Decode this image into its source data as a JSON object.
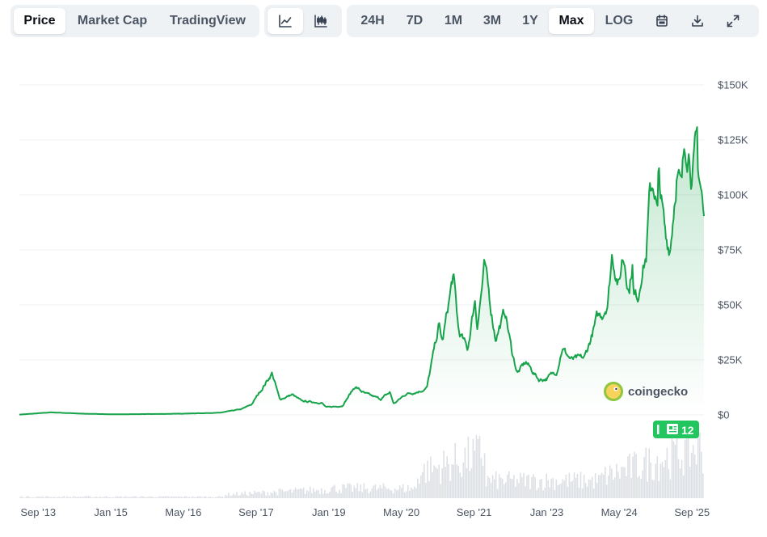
{
  "tabs": [
    {
      "label": "Price",
      "active": true
    },
    {
      "label": "Market Cap",
      "active": false
    },
    {
      "label": "TradingView",
      "active": false
    }
  ],
  "chart_views": [
    {
      "icon": "line-chart-icon",
      "active": true
    },
    {
      "icon": "candlestick-chart-icon",
      "active": false
    }
  ],
  "ranges": [
    {
      "label": "24H",
      "active": false
    },
    {
      "label": "7D",
      "active": false
    },
    {
      "label": "1M",
      "active": false
    },
    {
      "label": "3M",
      "active": false
    },
    {
      "label": "1Y",
      "active": false
    },
    {
      "label": "Max",
      "active": true
    },
    {
      "label": "LOG",
      "active": false
    }
  ],
  "tools": [
    {
      "icon": "calendar-icon"
    },
    {
      "icon": "download-icon"
    },
    {
      "icon": "expand-icon"
    }
  ],
  "watermark": {
    "text": "coingecko"
  },
  "news_badge": {
    "count": "12"
  },
  "colors": {
    "line": "#16a34a",
    "fill": "#16a34a",
    "volume": "#d1d5db",
    "grid": "#eef0f3",
    "badge": "#22c55e"
  },
  "chart_data": {
    "type": "area",
    "ylim": [
      0,
      150000
    ],
    "ytick_values": [
      0,
      25000,
      50000,
      75000,
      100000,
      125000,
      150000
    ],
    "ytick_labels": [
      "$0",
      "$25K",
      "$50K",
      "$75K",
      "$100K",
      "$125K",
      "$150K"
    ],
    "xtick_dates": [
      "2013-09-01",
      "2015-01-01",
      "2016-05-01",
      "2017-09-01",
      "2019-01-01",
      "2020-05-01",
      "2021-09-01",
      "2023-01-01",
      "2024-05-01",
      "2025-09-01"
    ],
    "xtick_labels": [
      "Sep '13",
      "Jan '15",
      "May '16",
      "Sep '17",
      "Jan '19",
      "May '20",
      "Sep '21",
      "Jan '23",
      "May '24",
      "Sep '25"
    ],
    "x_range": [
      "2013-04-28",
      "2025-11-20"
    ],
    "series": [
      {
        "x": [
          "2013-04-28",
          "2013-11-30",
          "2014-06-01",
          "2015-01-15",
          "2016-01-01",
          "2016-07-01",
          "2017-01-01",
          "2017-05-25",
          "2017-08-01",
          "2017-12-17",
          "2018-02-06",
          "2018-05-01",
          "2018-07-01",
          "2018-11-15",
          "2018-12-15",
          "2019-04-01",
          "2019-06-26",
          "2019-09-01",
          "2019-12-15",
          "2020-02-15",
          "2020-03-12",
          "2020-06-01",
          "2020-09-01",
          "2020-10-20",
          "2021-01-08",
          "2021-02-01",
          "2021-04-14",
          "2021-05-20",
          "2021-07-20",
          "2021-09-07",
          "2021-09-21",
          "2021-11-10",
          "2022-01-22",
          "2022-03-29",
          "2022-05-09",
          "2022-06-18",
          "2022-08-15",
          "2022-11-09",
          "2022-12-30",
          "2023-03-10",
          "2023-04-14",
          "2023-06-15",
          "2023-09-11",
          "2023-10-23",
          "2023-12-05",
          "2024-01-10",
          "2024-02-15",
          "2024-03-14",
          "2024-05-01",
          "2024-05-21",
          "2024-06-07",
          "2024-07-05",
          "2024-07-29",
          "2024-08-05",
          "2024-09-06",
          "2024-09-27",
          "2024-10-29",
          "2024-11-12",
          "2024-11-22",
          "2024-12-17",
          "2025-01-13",
          "2025-01-20",
          "2025-02-28",
          "2025-03-10",
          "2025-04-08",
          "2025-05-22",
          "2025-06-22",
          "2025-07-14",
          "2025-08-14",
          "2025-09-01",
          "2025-10-06",
          "2025-10-10",
          "2025-11-04",
          "2025-11-21"
        ],
        "y": [
          130,
          1150,
          600,
          250,
          430,
          670,
          960,
          2600,
          4700,
          19000,
          7000,
          9200,
          6300,
          5500,
          3400,
          4100,
          12900,
          9600,
          7200,
          10200,
          5000,
          9500,
          10800,
          12300,
          40700,
          33000,
          63500,
          38000,
          29800,
          52700,
          40800,
          67500,
          35100,
          47000,
          30000,
          19000,
          24000,
          16000,
          16500,
          20000,
          30400,
          25000,
          25800,
          34500,
          43900,
          46000,
          52000,
          73100,
          58500,
          71500,
          70000,
          56600,
          69900,
          53900,
          54000,
          65700,
          72300,
          89900,
          98900,
          106300,
          91000,
          109100,
          84300,
          78500,
          76300,
          111700,
          101000,
          123100,
          121700,
          108500,
          124800,
          112000,
          101500,
          87000
        ]
      }
    ]
  }
}
